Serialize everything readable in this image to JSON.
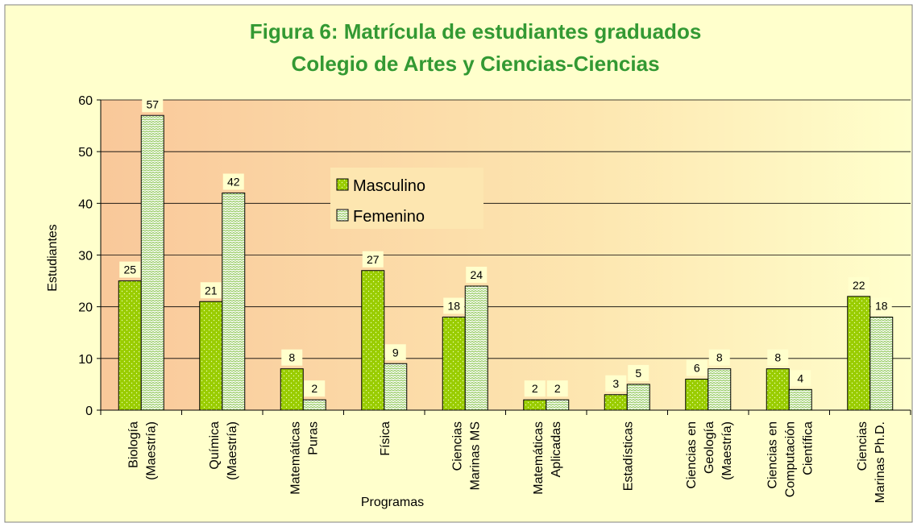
{
  "chart_data": {
    "type": "bar",
    "title": [
      "Figura 6: Matrícula  de estudiantes graduados",
      "Colegio de Artes y Ciencias-Ciencias"
    ],
    "x_label": "Programas",
    "y_label": "Estudiantes",
    "categories": [
      [
        "Biología",
        "(Maestría)"
      ],
      [
        "Química",
        "(Maestría)"
      ],
      [
        "Matemáticas",
        "Puras"
      ],
      [
        "Física"
      ],
      [
        "Ciencias",
        "Marinas MS"
      ],
      [
        "Matemáticas",
        "Aplicadas"
      ],
      [
        "Estadísticas"
      ],
      [
        "Ciencias en",
        "Geología",
        "(Maestría)"
      ],
      [
        "Ciencias en",
        "Computación",
        "Científica"
      ],
      [
        "Ciencias",
        "Marinas Ph.D."
      ]
    ],
    "series": [
      {
        "name": "Masculino",
        "color": "#99cc00",
        "values": [
          25,
          21,
          8,
          27,
          18,
          2,
          3,
          6,
          8,
          22
        ]
      },
      {
        "name": "Femenino",
        "color": "#ccffcc",
        "values": [
          57,
          42,
          2,
          9,
          24,
          2,
          5,
          8,
          4,
          18
        ]
      }
    ],
    "ylim": [
      0,
      60
    ],
    "yticks": [
      0,
      10,
      20,
      30,
      40,
      50,
      60
    ],
    "grid": true,
    "legend": "top-center"
  }
}
